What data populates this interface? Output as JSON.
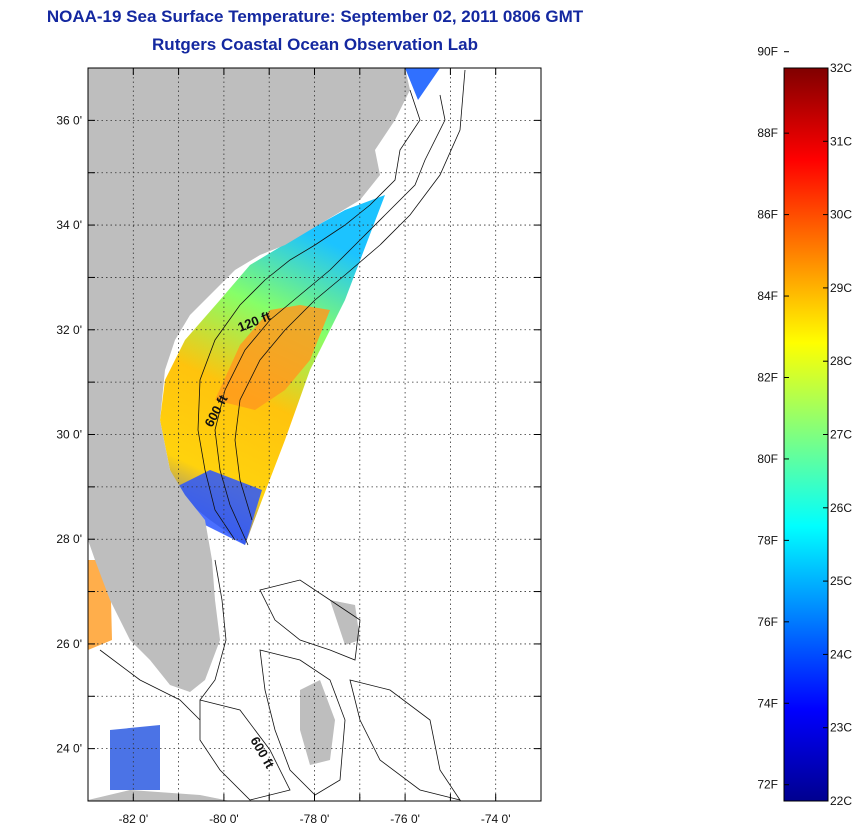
{
  "title": "NOAA-19 Sea Surface Temperature:  September 02, 2011 0806 GMT",
  "subtitle": "Rutgers Coastal Ocean Observation Lab",
  "map": {
    "lon_range": [
      -83,
      -73
    ],
    "lat_range": [
      23,
      37
    ],
    "lon_ticks": [
      {
        "v": -82,
        "label": "-82 0'"
      },
      {
        "v": -80,
        "label": "-80 0'"
      },
      {
        "v": -78,
        "label": "-78 0'"
      },
      {
        "v": -76,
        "label": "-76 0'"
      },
      {
        "v": -74,
        "label": "-74 0'"
      }
    ],
    "lat_ticks": [
      {
        "v": 24,
        "label": "24 0'"
      },
      {
        "v": 26,
        "label": "26 0'"
      },
      {
        "v": 28,
        "label": "28 0'"
      },
      {
        "v": 30,
        "label": "30 0'"
      },
      {
        "v": 32,
        "label": "32 0'"
      },
      {
        "v": 34,
        "label": "34 0'"
      },
      {
        "v": 36,
        "label": "36 0'"
      }
    ],
    "contour_labels": [
      "120 ft",
      "600 ft",
      "600 ft"
    ],
    "land_color": "#bebebe"
  },
  "colorbar": {
    "fahrenheit_labels": [
      "90F",
      "88F",
      "86F",
      "84F",
      "82F",
      "80F",
      "78F",
      "76F",
      "74F",
      "72F"
    ],
    "celsius_labels": [
      "32C",
      "31C",
      "30C",
      "29C",
      "28C",
      "27C",
      "26C",
      "25C",
      "24C",
      "23C",
      "22C"
    ],
    "min_c": 22,
    "max_c": 32,
    "colormap": "jet"
  }
}
